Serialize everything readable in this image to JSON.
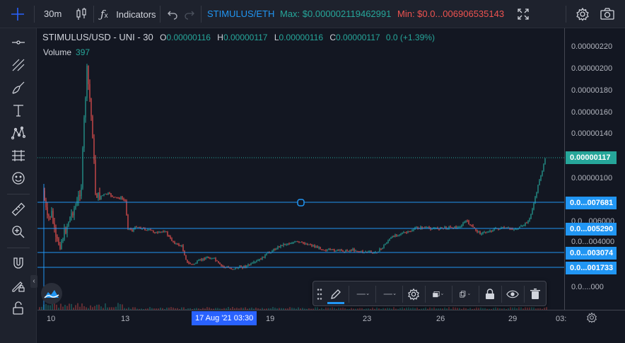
{
  "topbar": {
    "interval": "30m",
    "indicators_label": "Indicators",
    "pair": "STIMULUS/ETH",
    "max_text": "Max: $0.000002119462991",
    "min_text": "Min: $0.0...006906535143"
  },
  "legend": {
    "symbol": "STIMULUS/USD - UNI - 30",
    "o_label": "O",
    "o_value": "0.00000116",
    "h_label": "H",
    "h_value": "0.00000117",
    "l_label": "L",
    "l_value": "0.00000116",
    "c_label": "C",
    "c_value": "0.00000117",
    "change": "0.0 (+1.39%)",
    "volume_label": "Volume",
    "volume_value": "397"
  },
  "price_axis": {
    "labels": [
      "0.00000220",
      "0.00000200",
      "0.00000180",
      "0.00000160",
      "0.00000140",
      "0.00000100",
      "0.0...006000",
      "0.0...004000",
      "0.0....000"
    ],
    "current_price": "0.00000117",
    "hline_tags": [
      "0.0...007681",
      "0.0...005290",
      "0.0...003074",
      "0.0...001733"
    ]
  },
  "time_axis": {
    "labels": [
      "10",
      "13",
      "19",
      "23",
      "26",
      "29",
      "03:"
    ],
    "crosshair_label": "17 Aug '21   03:30"
  },
  "colors": {
    "background": "#131722",
    "up": "#26a69a",
    "down": "#ef5350",
    "hline": "#2196f3",
    "pair": "#2196f3",
    "max": "#26a69a",
    "min": "#ef5350"
  }
}
